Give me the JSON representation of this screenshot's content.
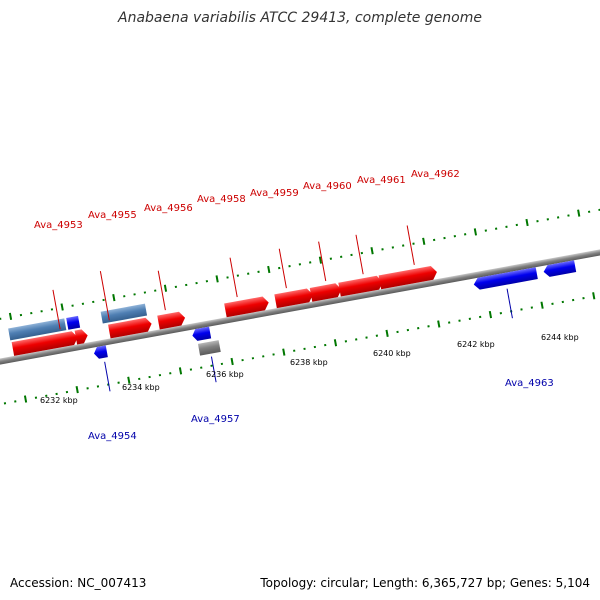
{
  "title": "Anabaena variabilis ATCC 29413, complete genome",
  "footer": {
    "accession": "Accession: NC_007413",
    "summary": "Topology: circular; Length: 6,365,727 bp; Genes: 5,104"
  },
  "colors": {
    "forward_gene": "#ee0000",
    "reverse_gene": "#0000ee",
    "forward_steelblue": "#4f7fb3",
    "reverse_steelblue": "#4f7fb3",
    "grey_gene": "#808080",
    "backbone": "#8a8a8a",
    "tick": "#007700"
  },
  "kbp_labels": [
    "6232 kbp",
    "6234 kbp",
    "6236 kbp",
    "6238 kbp",
    "6240 kbp",
    "6242 kbp",
    "6244 kbp"
  ],
  "top_labels": [
    "Ava_4953",
    "Ava_4955",
    "Ava_4956",
    "Ava_4958",
    "Ava_4959",
    "Ava_4960",
    "Ava_4961",
    "Ava_4962"
  ],
  "bottom_labels": [
    "Ava_4954",
    "Ava_4957",
    "Ava_4963"
  ]
}
